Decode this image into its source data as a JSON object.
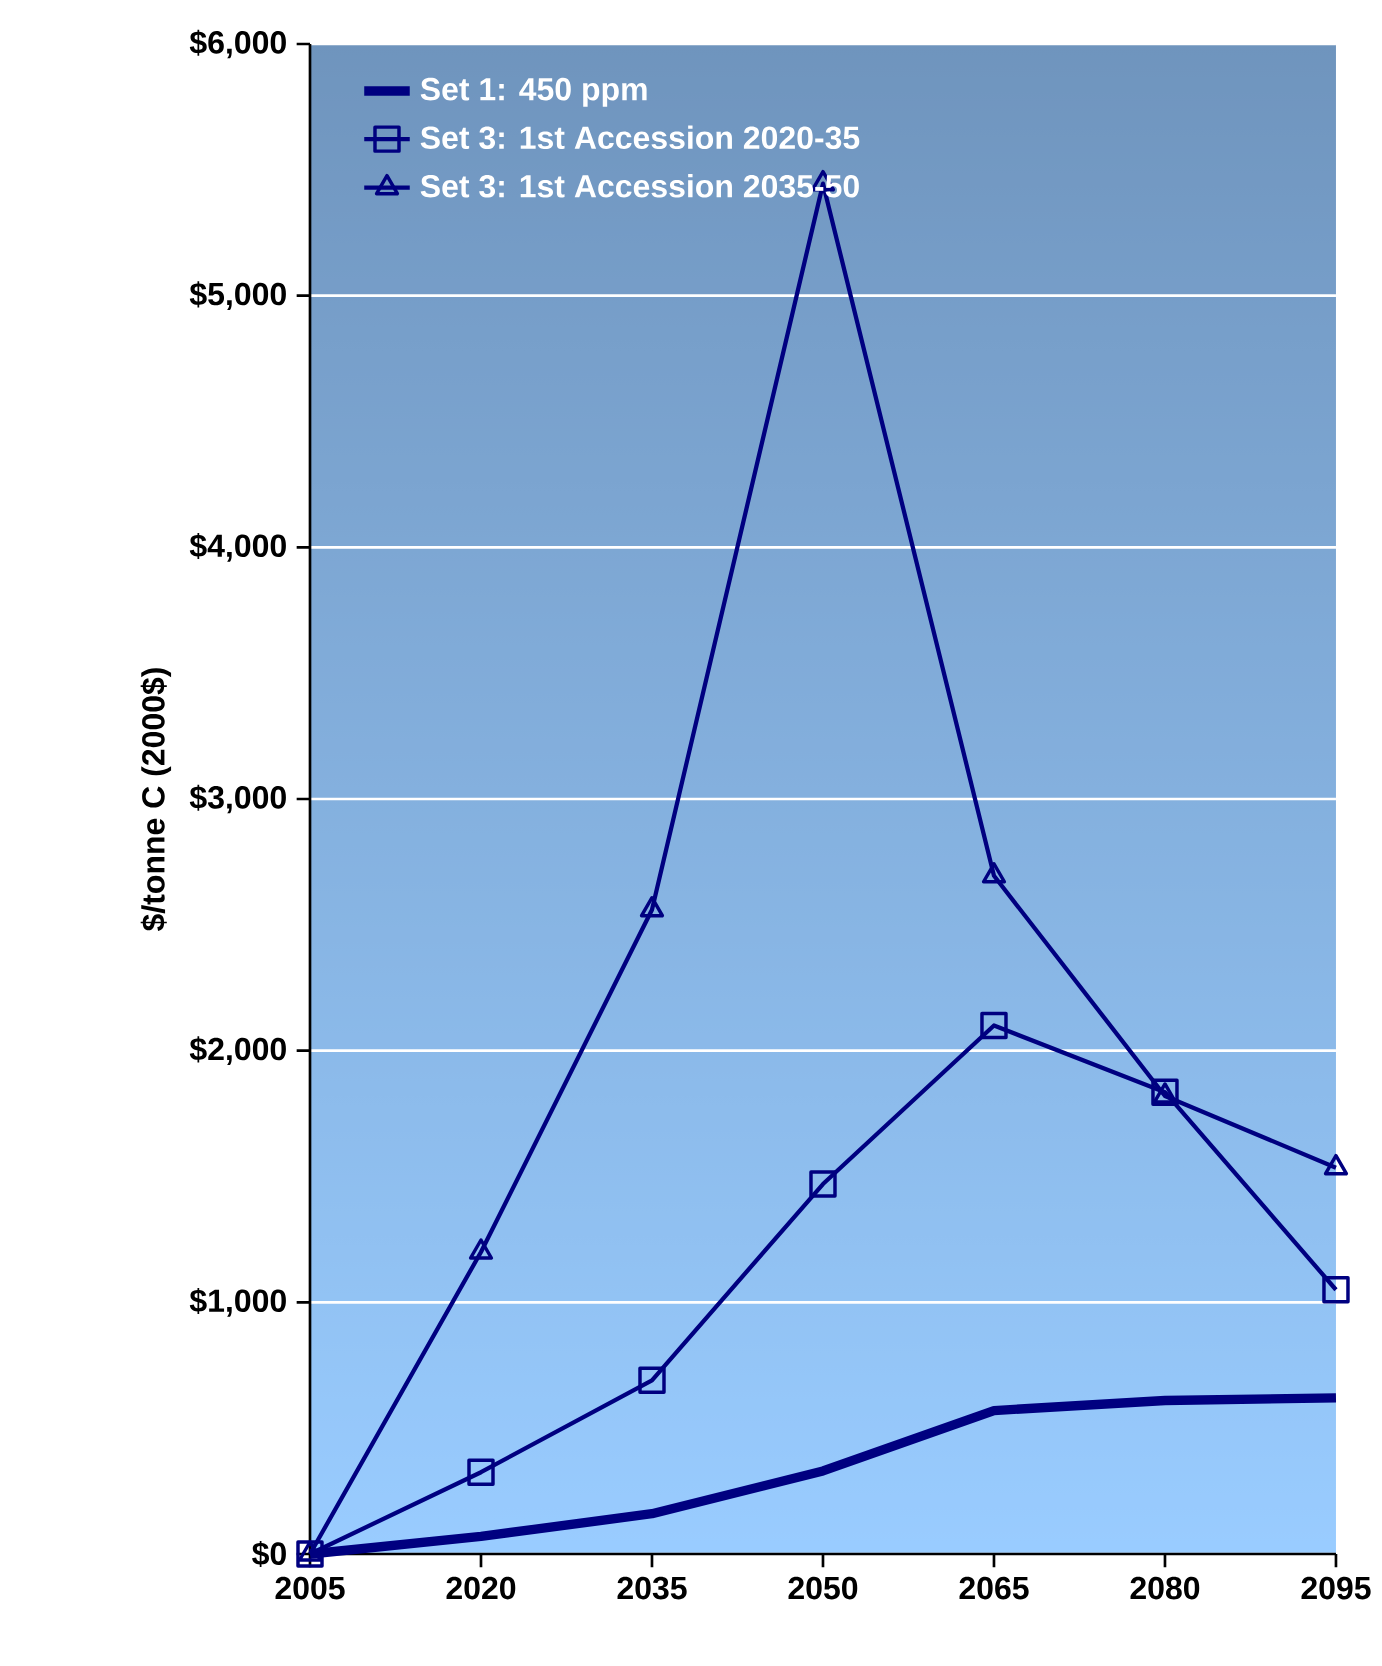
{
  "chart_data": {
    "type": "line",
    "ylabel": "$/tonne C (2000$)",
    "x": [
      2005,
      2020,
      2035,
      2050,
      2065,
      2080,
      2095
    ],
    "series": [
      {
        "name": "Set 1:  450 ppm",
        "color": "#000080",
        "marker": "none",
        "values": [
          0,
          70,
          160,
          330,
          570,
          610,
          620
        ]
      },
      {
        "name": "Set 3:  1st Accession 2020-35",
        "color": "#000080",
        "marker": "square",
        "values": [
          0,
          325,
          690,
          1470,
          2100,
          1835,
          1050
        ]
      },
      {
        "name": "Set 3:  1st Accession 2035-50",
        "color": "#000080",
        "marker": "triangle",
        "values": [
          0,
          1200,
          2560,
          5445,
          2695,
          1820,
          1535
        ]
      }
    ],
    "xlim": [
      2005,
      2095
    ],
    "xticks": [
      2005,
      2020,
      2035,
      2050,
      2065,
      2080,
      2095
    ],
    "ylim": [
      0,
      6000
    ],
    "yticks": [
      {
        "value": 0,
        "label": "$0"
      },
      {
        "value": 1000,
        "label": "$1,000"
      },
      {
        "value": 2000,
        "label": "$2,000"
      },
      {
        "value": 3000,
        "label": "$3,000"
      },
      {
        "value": 4000,
        "label": "$4,000"
      },
      {
        "value": 5000,
        "label": "$5,000"
      },
      {
        "value": 6000,
        "label": "$6,000"
      }
    ],
    "grid": "y",
    "legend": "top left"
  }
}
